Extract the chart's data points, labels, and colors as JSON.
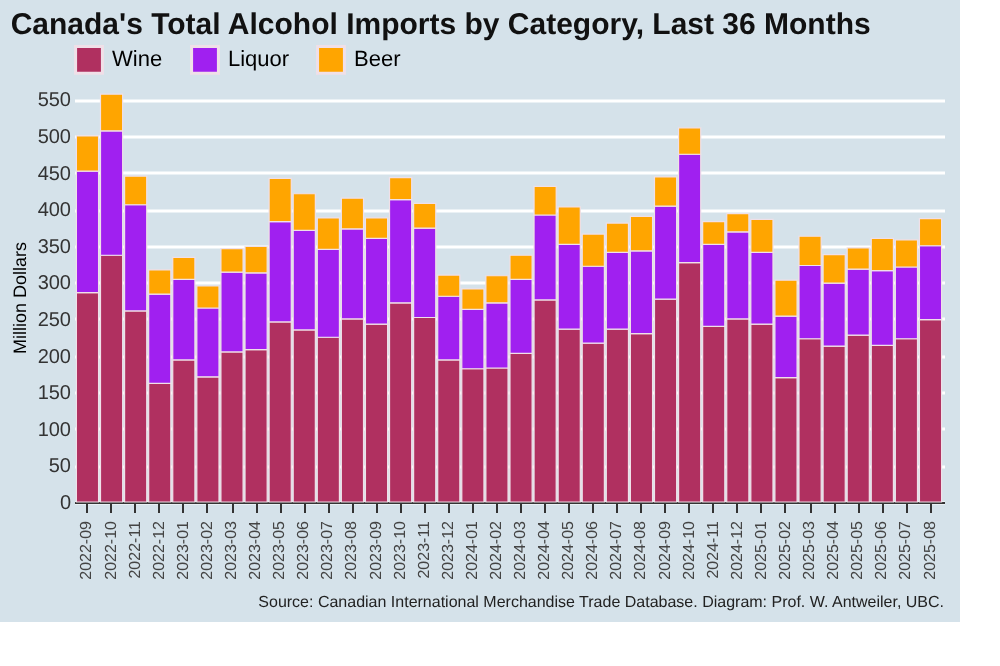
{
  "chart_data": {
    "type": "bar",
    "stacked": true,
    "title": "Canada's Total Alcohol Imports by Category, Last 36 Months",
    "ylabel": "Million Dollars",
    "categories": [
      "2022-09",
      "2022-10",
      "2022-11",
      "2022-12",
      "2023-01",
      "2023-02",
      "2023-03",
      "2023-04",
      "2023-05",
      "2023-06",
      "2023-07",
      "2023-08",
      "2023-09",
      "2023-10",
      "2023-11",
      "2023-12",
      "2024-01",
      "2024-02",
      "2024-03",
      "2024-04",
      "2024-05",
      "2024-06",
      "2024-07",
      "2024-08",
      "2024-09",
      "2024-10",
      "2024-11",
      "2024-12",
      "2025-01",
      "2025-02",
      "2025-03",
      "2025-04",
      "2025-05",
      "2025-06",
      "2025-07",
      "2025-08"
    ],
    "series": [
      {
        "name": "Wine",
        "color": "#b03060",
        "values": [
          286,
          337,
          261,
          162,
          194,
          171,
          205,
          208,
          246,
          235,
          225,
          250,
          243,
          272,
          252,
          194,
          182,
          183,
          203,
          276,
          236,
          217,
          236,
          230,
          277,
          327,
          240,
          250,
          243,
          170,
          223,
          213,
          228,
          214,
          223,
          249
        ]
      },
      {
        "name": "Liquor",
        "color": "#a020f0",
        "values": [
          166,
          170,
          145,
          122,
          110,
          94,
          109,
          105,
          137,
          136,
          120,
          123,
          117,
          141,
          122,
          87,
          81,
          89,
          101,
          116,
          116,
          105,
          105,
          113,
          127,
          148,
          112,
          119,
          98,
          84,
          100,
          86,
          90,
          102,
          98,
          101
        ]
      },
      {
        "name": "Beer",
        "color": "#ffa500",
        "values": [
          48,
          50,
          39,
          33,
          30,
          30,
          32,
          36,
          59,
          50,
          43,
          42,
          28,
          30,
          34,
          29,
          28,
          37,
          33,
          39,
          51,
          44,
          40,
          47,
          40,
          36,
          31,
          25,
          45,
          49,
          40,
          39,
          29,
          44,
          37,
          37
        ]
      }
    ],
    "ylim": [
      0,
      560
    ],
    "yticks": [
      0,
      50,
      100,
      150,
      200,
      250,
      300,
      350,
      400,
      450,
      500,
      550
    ],
    "grid": "y",
    "legend": "top",
    "annotations": [
      "Source: Canadian International Merchandise Trade Database. Diagram: Prof. W. Antweiler, UBC."
    ]
  }
}
